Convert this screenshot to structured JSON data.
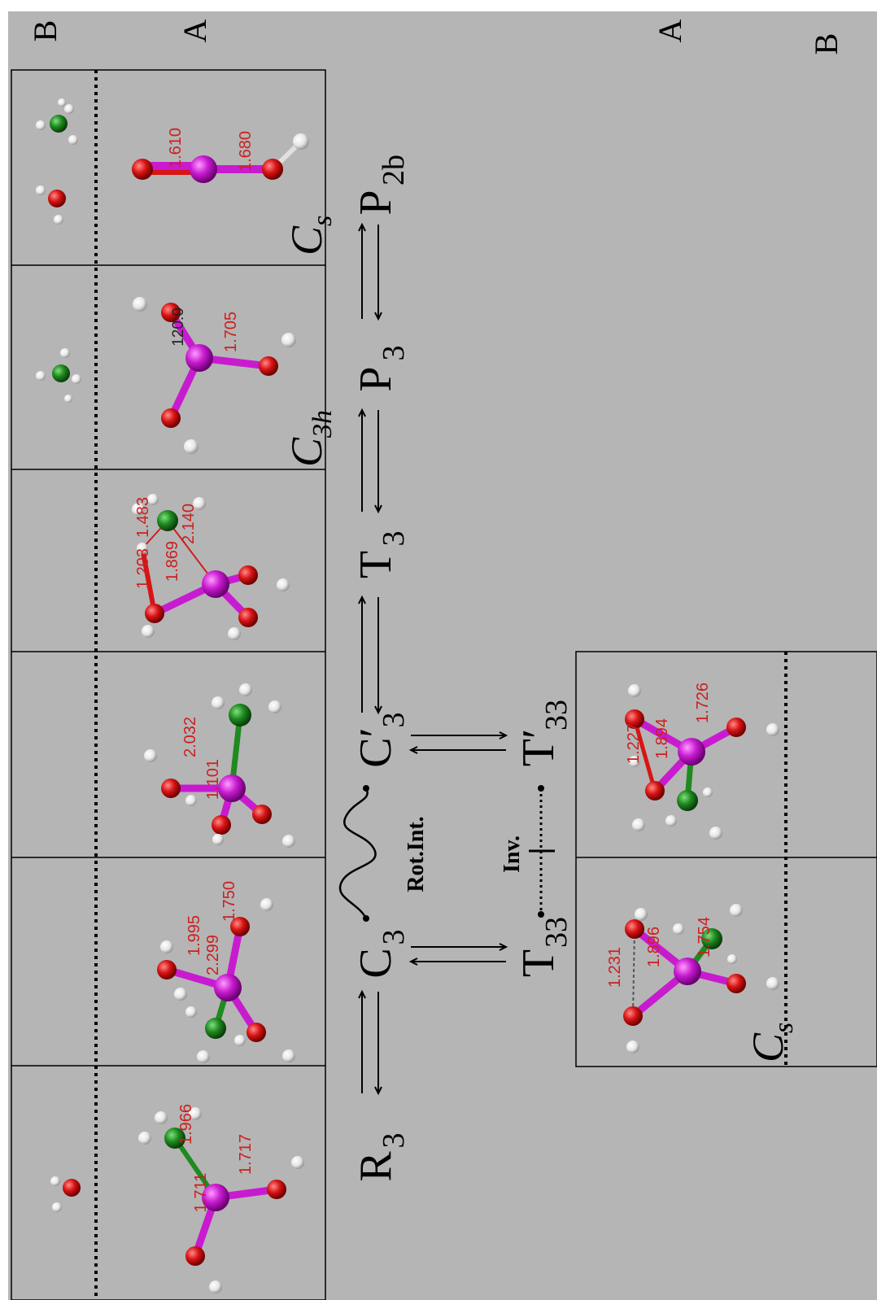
{
  "region_labels": {
    "B_top": "B",
    "A_top": "A",
    "A_bottom": "A",
    "B_bottom": "B"
  },
  "species": {
    "R3": {
      "main": "R",
      "sub": "3"
    },
    "C3": {
      "main": "C",
      "sub": "3"
    },
    "C3p": {
      "main": "C′",
      "sub": "3"
    },
    "T3": {
      "main": "T",
      "sub": "3"
    },
    "P3": {
      "main": "P",
      "sub": "3"
    },
    "P2b": {
      "main": "P",
      "sub": "2b"
    },
    "T33": {
      "main": "T",
      "sub": "33"
    },
    "T33p": {
      "main": "T′",
      "sub": "33"
    }
  },
  "path_labels": {
    "rot_int": "Rot.Int.",
    "inv": "Inv."
  },
  "symmetry": {
    "P2b": {
      "main": "C",
      "sub": "s"
    },
    "P3": {
      "main": "C",
      "sub": "3h"
    },
    "T33": {
      "main": "C",
      "sub": "s"
    }
  },
  "distances": {
    "R3": [
      "1.711",
      "1.966",
      "1.717"
    ],
    "C3": [
      "1.995",
      "2.299",
      "1.750"
    ],
    "C3p": [
      "2.032",
      "1.101"
    ],
    "T3": [
      "1.203",
      "1.483",
      "1.869",
      "2.140"
    ],
    "P3": [
      "120.0",
      "1.705"
    ],
    "P2b": [
      "1.610",
      "1.680"
    ],
    "T33": [
      "1.231",
      "1.896",
      "1.754"
    ],
    "T33p": [
      "1.227",
      "1.894",
      "1.726"
    ]
  },
  "colors": {
    "phosphorus": "#c81bd0",
    "oxygen": "#d81414",
    "carbon": "#1f8a1f",
    "hydrogen": "#f2f2f2",
    "bond_text": "#cc1f1f",
    "background": "#b5b5b5"
  }
}
